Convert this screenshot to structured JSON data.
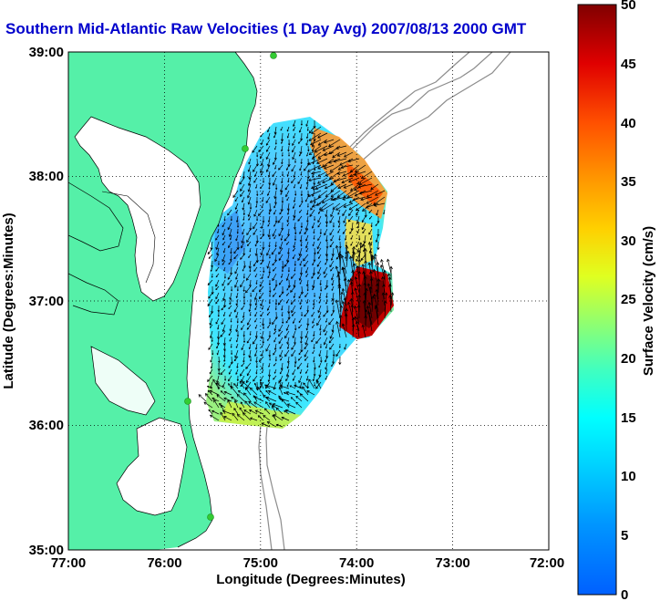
{
  "title": "Southern Mid-Atlantic Raw Velocities (1 Day Avg) 2007/08/13 2000 GMT",
  "x_axis": {
    "label": "Longitude (Degrees:Minutes)",
    "ticks": [
      "77:00",
      "76:00",
      "75:00",
      "74:00",
      "73:00",
      "72:00"
    ]
  },
  "y_axis": {
    "label": "Latitude (Degrees:Minutes)",
    "ticks": [
      "39:00",
      "38:00",
      "37:00",
      "36:00",
      "35:00"
    ]
  },
  "colorbar": {
    "label": "Surface Velocity (cm/s)",
    "ticks": [
      "50",
      "45",
      "40",
      "35",
      "30",
      "25",
      "20",
      "15",
      "10",
      "5",
      "0"
    ],
    "min": 0,
    "max": 50
  },
  "colors": {
    "land": "#55f0a8",
    "bathymetry": "#8c8c8c",
    "title": "#0000cc",
    "station": "#33cc33"
  },
  "grid": "dotted",
  "stations": 4
}
